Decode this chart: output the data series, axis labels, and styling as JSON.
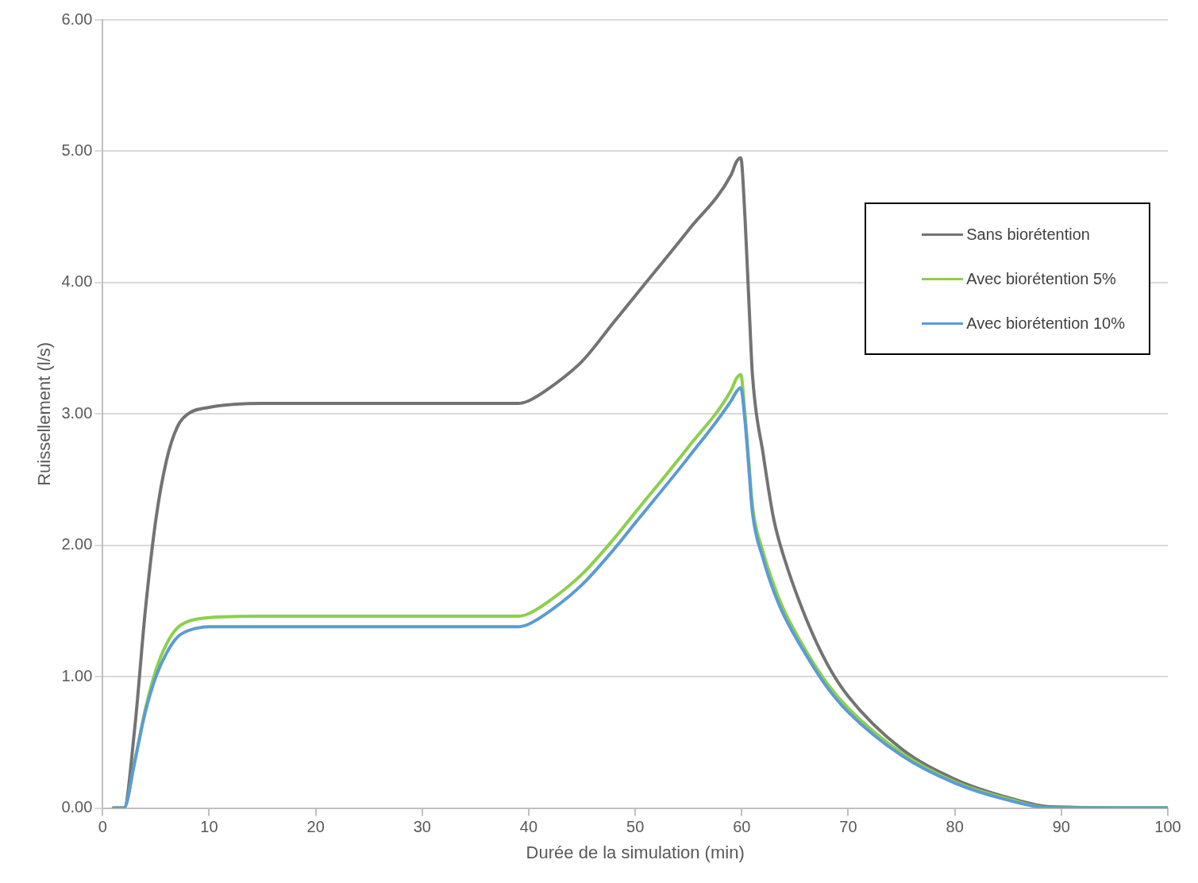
{
  "chart_data": {
    "type": "line",
    "xlabel": "Durée de la simulation (min)",
    "ylabel": "Ruissellement (l/s)",
    "xlim": [
      0,
      100
    ],
    "xticks": [
      0,
      10,
      20,
      30,
      40,
      50,
      60,
      70,
      80,
      90,
      100
    ],
    "ylim": [
      0,
      6
    ],
    "yticks": [
      {
        "value": 0,
        "label": "0.00"
      },
      {
        "value": 1,
        "label": "1.00"
      },
      {
        "value": 2,
        "label": "2.00"
      },
      {
        "value": 3,
        "label": "3.00"
      },
      {
        "value": 4,
        "label": "4.00"
      },
      {
        "value": 5,
        "label": "5.00"
      },
      {
        "value": 6,
        "label": "6.00"
      }
    ],
    "grid": "y",
    "legend": "top right",
    "marker": "none",
    "line_style": "solid",
    "x": [
      1,
      2,
      3,
      4,
      5,
      6,
      7,
      8,
      10,
      15,
      39,
      40,
      42,
      45,
      48,
      50,
      55,
      59,
      59.5,
      59.9,
      60.3,
      60.7,
      61,
      62,
      63,
      64,
      66,
      68,
      70,
      75,
      80,
      85,
      89,
      100
    ],
    "series": [
      {
        "name": "Sans biorétention",
        "color": "#737373",
        "values": [
          0,
          0,
          0.6,
          1.5,
          2.2,
          2.65,
          2.9,
          3.0,
          3.05,
          3.08,
          3.08,
          3.1,
          3.2,
          3.4,
          3.7,
          3.9,
          4.4,
          4.82,
          4.92,
          4.95,
          4.5,
          3.8,
          3.3,
          2.7,
          2.2,
          1.9,
          1.45,
          1.1,
          0.85,
          0.45,
          0.22,
          0.08,
          0.01,
          0
        ]
      },
      {
        "name": "Avec biorétention 5%",
        "color": "#8cd04a",
        "values": [
          0,
          0,
          0.35,
          0.75,
          1.05,
          1.25,
          1.37,
          1.42,
          1.45,
          1.46,
          1.46,
          1.48,
          1.58,
          1.78,
          2.05,
          2.25,
          2.75,
          3.18,
          3.27,
          3.3,
          3.0,
          2.6,
          2.3,
          1.95,
          1.7,
          1.5,
          1.2,
          0.95,
          0.76,
          0.42,
          0.2,
          0.07,
          0,
          0
        ]
      },
      {
        "name": "Avec biorétention 10%",
        "color": "#5b9bd5",
        "values": [
          0,
          0,
          0.35,
          0.73,
          1.0,
          1.18,
          1.3,
          1.35,
          1.38,
          1.38,
          1.38,
          1.4,
          1.5,
          1.7,
          1.97,
          2.17,
          2.67,
          3.1,
          3.17,
          3.2,
          2.95,
          2.55,
          2.25,
          1.9,
          1.65,
          1.46,
          1.17,
          0.92,
          0.73,
          0.4,
          0.19,
          0.06,
          0,
          0
        ]
      }
    ]
  }
}
